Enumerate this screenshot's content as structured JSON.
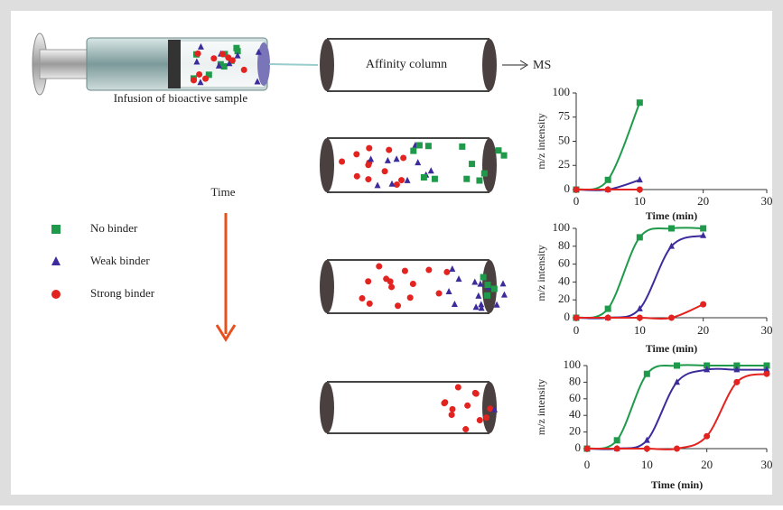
{
  "diagram": {
    "syringe_label": "Infusion of bioactive sample",
    "column_label": "Affinity column",
    "output_label": "MS",
    "time_label": "Time"
  },
  "legend": [
    {
      "label": "No binder",
      "color": "#1f9a4b",
      "marker": "square"
    },
    {
      "label": "Weak binder",
      "color": "#3b2b9b",
      "marker": "triangle"
    },
    {
      "label": "Strong binder",
      "color": "#e3231f",
      "marker": "circle"
    }
  ],
  "chart_data": [
    {
      "type": "line",
      "xlabel": "Time (min)",
      "ylabel": "m/z intensity",
      "xlim": [
        0,
        30
      ],
      "ylim": [
        0,
        100
      ],
      "xticks": [
        0,
        10,
        20,
        30
      ],
      "yticks": [
        0,
        25,
        50,
        75,
        100
      ],
      "x": [
        0,
        5,
        10
      ],
      "series": [
        {
          "color": "#1f9a4b",
          "marker": "square",
          "values": [
            0,
            10,
            90
          ]
        },
        {
          "color": "#3b2b9b",
          "marker": "triangle",
          "values": [
            0,
            0,
            10
          ]
        },
        {
          "color": "#e3231f",
          "marker": "circle",
          "values": [
            0,
            0,
            0
          ]
        }
      ]
    },
    {
      "type": "line",
      "xlabel": "Time (min)",
      "ylabel": "m/z intensity",
      "xlim": [
        0,
        30
      ],
      "ylim": [
        0,
        100
      ],
      "xticks": [
        0,
        10,
        20,
        30
      ],
      "yticks": [
        0,
        20,
        40,
        60,
        80,
        100
      ],
      "x": [
        0,
        5,
        10,
        15,
        20
      ],
      "series": [
        {
          "color": "#1f9a4b",
          "marker": "square",
          "values": [
            0,
            10,
            90,
            100,
            100
          ]
        },
        {
          "color": "#3b2b9b",
          "marker": "triangle",
          "values": [
            0,
            0,
            10,
            80,
            92
          ]
        },
        {
          "color": "#e3231f",
          "marker": "circle",
          "values": [
            0,
            0,
            0,
            0,
            15
          ]
        }
      ]
    },
    {
      "type": "line",
      "xlabel": "Time (min)",
      "ylabel": "m/z intensity",
      "xlim": [
        0,
        30
      ],
      "ylim": [
        0,
        100
      ],
      "xticks": [
        0,
        10,
        20,
        30
      ],
      "yticks": [
        0,
        20,
        40,
        60,
        80,
        100
      ],
      "x": [
        0,
        5,
        10,
        15,
        20,
        25,
        30
      ],
      "series": [
        {
          "color": "#1f9a4b",
          "marker": "square",
          "values": [
            0,
            10,
            90,
            100,
            100,
            100,
            100
          ]
        },
        {
          "color": "#3b2b9b",
          "marker": "triangle",
          "values": [
            0,
            0,
            10,
            80,
            95,
            95,
            95
          ]
        },
        {
          "color": "#e3231f",
          "marker": "circle",
          "values": [
            0,
            0,
            0,
            0,
            15,
            80,
            90
          ]
        }
      ]
    }
  ]
}
